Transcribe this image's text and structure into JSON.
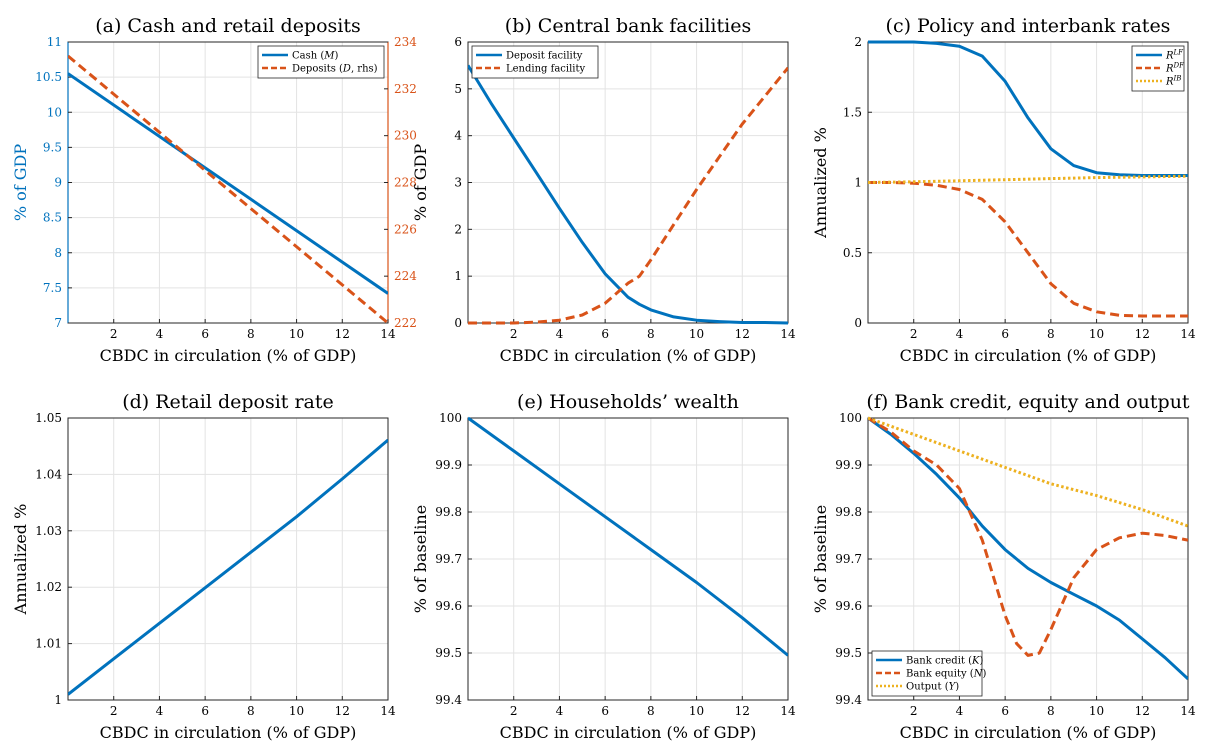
{
  "colors": {
    "blue": "#0072BD",
    "orange": "#D95319",
    "yellow": "#EDB120",
    "grid": "#e3e3e3"
  },
  "chart_data": [
    {
      "type": "line",
      "title": "(a) Cash and retail deposits",
      "xlabel": "CBDC in circulation (% of GDP)",
      "ylabel": "% of GDP",
      "xlim": [
        0,
        14
      ],
      "ylim": [
        7,
        11
      ],
      "y2lim": [
        222,
        234
      ],
      "xticks": [
        2,
        4,
        6,
        8,
        10,
        12,
        14
      ],
      "yticks": [
        7,
        7.5,
        8,
        8.5,
        9,
        9.5,
        10,
        10.5,
        11
      ],
      "y2ticks": [
        222,
        224,
        226,
        228,
        230,
        232,
        234
      ],
      "grid": true,
      "legend": "top-right",
      "series": [
        {
          "name": "Cash (M)",
          "axis": "left",
          "style": "solid",
          "color": "#0072BD",
          "x": [
            0,
            14
          ],
          "y": [
            10.55,
            7.42
          ]
        },
        {
          "name": "Deposits (D, rhs)",
          "axis": "right",
          "style": "dashed",
          "color": "#D95319",
          "x": [
            0,
            14
          ],
          "y": [
            233.4,
            222.0
          ]
        }
      ]
    },
    {
      "type": "line",
      "title": "(b) Central bank facilities",
      "xlabel": "CBDC in circulation (% of GDP)",
      "ylabel": "% of GDP",
      "xlim": [
        0,
        14
      ],
      "ylim": [
        0,
        6
      ],
      "xticks": [
        2,
        4,
        6,
        8,
        10,
        12,
        14
      ],
      "yticks": [
        0,
        1,
        2,
        3,
        4,
        5,
        6
      ],
      "grid": true,
      "legend": "top-left",
      "series": [
        {
          "name": "Deposit facility",
          "style": "solid",
          "color": "#0072BD",
          "x": [
            0,
            1,
            2,
            3,
            4,
            5,
            6,
            7,
            7.5,
            8,
            9,
            10,
            11,
            12,
            13,
            14
          ],
          "y": [
            5.5,
            4.7,
            3.95,
            3.2,
            2.45,
            1.72,
            1.05,
            0.55,
            0.4,
            0.28,
            0.13,
            0.06,
            0.03,
            0.01,
            0.01,
            0.0
          ]
        },
        {
          "name": "Lending facility",
          "style": "dashed",
          "color": "#D95319",
          "x": [
            0,
            1,
            2,
            3,
            4,
            5,
            6,
            7,
            7.5,
            8,
            9,
            10,
            11,
            12,
            13,
            14
          ],
          "y": [
            0,
            0,
            0,
            0.02,
            0.06,
            0.17,
            0.42,
            0.85,
            1.0,
            1.35,
            2.1,
            2.85,
            3.55,
            4.25,
            4.85,
            5.45
          ]
        }
      ]
    },
    {
      "type": "line",
      "title": "(c) Policy and interbank rates",
      "xlabel": "CBDC in circulation (% of GDP)",
      "ylabel": "Annualized %",
      "xlim": [
        0,
        14
      ],
      "ylim": [
        0,
        2
      ],
      "xticks": [
        2,
        4,
        6,
        8,
        10,
        12,
        14
      ],
      "yticks": [
        0,
        0.5,
        1,
        1.5,
        2
      ],
      "grid": true,
      "legend": "top-right",
      "series": [
        {
          "name": "R^LF",
          "style": "solid",
          "color": "#0072BD",
          "x": [
            0,
            1,
            2,
            3,
            4,
            5,
            6,
            7,
            8,
            9,
            10,
            11,
            12,
            13,
            14
          ],
          "y": [
            2.0,
            2.0,
            2.0,
            1.99,
            1.97,
            1.9,
            1.72,
            1.46,
            1.24,
            1.12,
            1.07,
            1.055,
            1.05,
            1.05,
            1.05
          ]
        },
        {
          "name": "R^DF",
          "style": "dashed",
          "color": "#D95319",
          "x": [
            0,
            1,
            2,
            3,
            4,
            5,
            6,
            7,
            8,
            9,
            10,
            11,
            12,
            13,
            14
          ],
          "y": [
            1.0,
            1.0,
            0.995,
            0.98,
            0.95,
            0.88,
            0.72,
            0.5,
            0.28,
            0.14,
            0.08,
            0.055,
            0.05,
            0.05,
            0.05
          ]
        },
        {
          "name": "R^IB",
          "style": "dotted",
          "color": "#EDB120",
          "x": [
            0,
            2,
            4,
            6,
            8,
            10,
            12,
            14
          ],
          "y": [
            1.0,
            1.005,
            1.012,
            1.02,
            1.028,
            1.035,
            1.04,
            1.045
          ]
        }
      ]
    },
    {
      "type": "line",
      "title": "(d) Retail deposit rate",
      "xlabel": "CBDC in circulation (% of GDP)",
      "ylabel": "Annualized %",
      "xlim": [
        0,
        14
      ],
      "ylim": [
        1,
        1.05
      ],
      "xticks": [
        2,
        4,
        6,
        8,
        10,
        12,
        14
      ],
      "yticks": [
        1,
        1.01,
        1.02,
        1.03,
        1.04,
        1.05
      ],
      "grid": true,
      "series": [
        {
          "style": "solid",
          "color": "#0072BD",
          "x": [
            0,
            2,
            4,
            6,
            8,
            10,
            12,
            14
          ],
          "y": [
            1.001,
            1.0073,
            1.0136,
            1.0199,
            1.0262,
            1.0325,
            1.0392,
            1.0461
          ]
        }
      ]
    },
    {
      "type": "line",
      "title": "(e) Households’ wealth",
      "xlabel": "CBDC in circulation (% of GDP)",
      "ylabel": "% of baseline",
      "xlim": [
        0,
        14
      ],
      "ylim": [
        99.4,
        100
      ],
      "xticks": [
        2,
        4,
        6,
        8,
        10,
        12,
        14
      ],
      "yticks": [
        99.4,
        99.5,
        99.6,
        99.7,
        99.8,
        99.9,
        100
      ],
      "grid": true,
      "series": [
        {
          "style": "solid",
          "color": "#0072BD",
          "x": [
            0,
            2,
            4,
            6,
            8,
            10,
            12,
            14
          ],
          "y": [
            100.0,
            99.93,
            99.86,
            99.79,
            99.72,
            99.65,
            99.575,
            99.495
          ]
        }
      ]
    },
    {
      "type": "line",
      "title": "(f) Bank credit, equity and output",
      "xlabel": "CBDC in circulation (% of GDP)",
      "ylabel": "% of baseline",
      "xlim": [
        0,
        14
      ],
      "ylim": [
        99.4,
        100
      ],
      "xticks": [
        2,
        4,
        6,
        8,
        10,
        12,
        14
      ],
      "yticks": [
        99.4,
        99.5,
        99.6,
        99.7,
        99.8,
        99.9,
        100
      ],
      "grid": true,
      "legend": "bottom-left",
      "series": [
        {
          "name": "Bank credit (K)",
          "style": "solid",
          "color": "#0072BD",
          "x": [
            0,
            1,
            2,
            3,
            4,
            5,
            6,
            7,
            8,
            9,
            10,
            11,
            12,
            13,
            14
          ],
          "y": [
            100.0,
            99.965,
            99.925,
            99.88,
            99.83,
            99.77,
            99.72,
            99.68,
            99.65,
            99.625,
            99.6,
            99.57,
            99.53,
            99.49,
            99.445
          ]
        },
        {
          "name": "Bank equity (N)",
          "style": "dashed",
          "color": "#D95319",
          "x": [
            0,
            1,
            2,
            3,
            4,
            5,
            6,
            6.5,
            7,
            7.5,
            8,
            9,
            10,
            11,
            12,
            13,
            14
          ],
          "y": [
            100.0,
            99.97,
            99.93,
            99.9,
            99.85,
            99.74,
            99.58,
            99.52,
            99.495,
            99.5,
            99.55,
            99.66,
            99.72,
            99.745,
            99.755,
            99.75,
            99.74
          ]
        },
        {
          "name": "Output (Y)",
          "style": "dotted",
          "color": "#EDB120",
          "x": [
            0,
            2,
            4,
            6,
            8,
            10,
            12,
            14
          ],
          "y": [
            100.0,
            99.965,
            99.93,
            99.895,
            99.86,
            99.835,
            99.805,
            99.77
          ]
        }
      ]
    }
  ]
}
